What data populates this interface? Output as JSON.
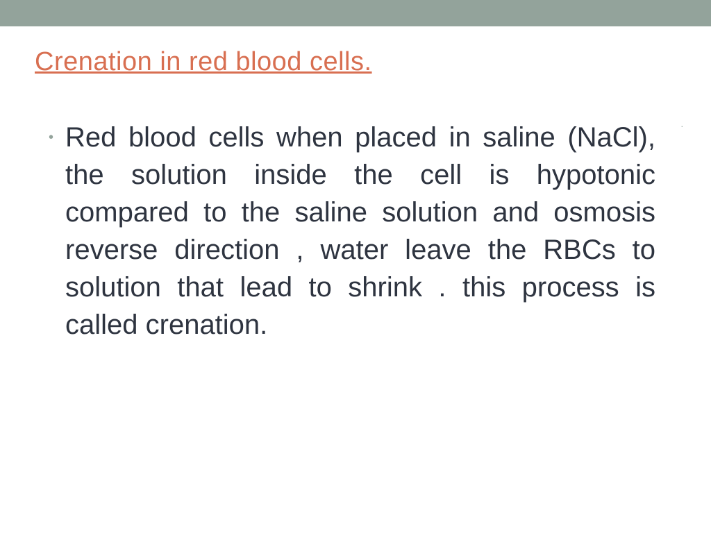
{
  "colors": {
    "topBar": "#93a39b",
    "title": "#d86f51",
    "bodyText": "#2e3440",
    "bullet": "#93a39b",
    "background": "#ffffff"
  },
  "typography": {
    "titleFontSize": 38,
    "bodyFontSize": 40,
    "fontFamily": "Arial"
  },
  "slide": {
    "title": "Crenation in red blood cells.",
    "upperBullet": ".",
    "bodyBullet": "•",
    "bodyText": "Red blood cells when placed in saline (NaCl), the solution  inside the cell is hypotonic compared to the saline solution and osmosis reverse direction , water leave the RBCs to solution that lead to shrink .  this process is called crenation."
  }
}
